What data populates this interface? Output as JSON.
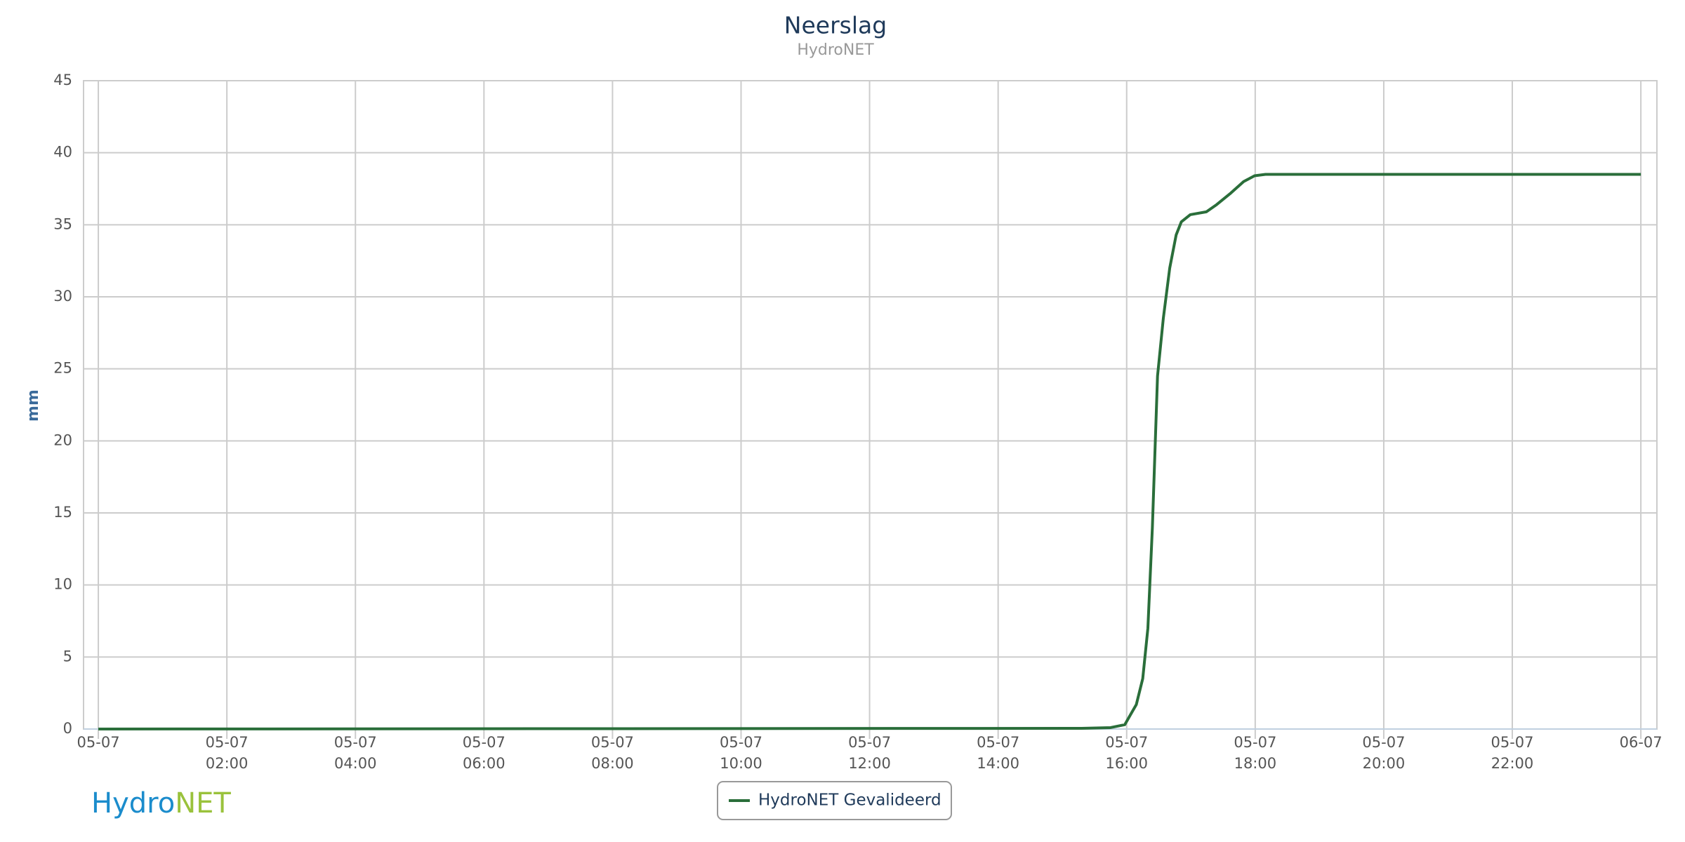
{
  "chart_data": {
    "type": "line",
    "title": "Neerslag",
    "subtitle": "HydroNET",
    "y_label": "mm",
    "x": [
      0,
      15.3,
      15.75,
      15.97,
      16.15,
      16.25,
      16.33,
      16.4,
      16.48,
      16.57,
      16.67,
      16.77,
      16.85,
      16.99,
      17.24,
      17.4,
      17.62,
      17.82,
      17.99,
      18.16,
      24
    ],
    "series": [
      {
        "name": "HydroNET Gevalideerd",
        "color": "#2a6e3a",
        "values": [
          0,
          0.05,
          0.1,
          0.3,
          1.7,
          3.5,
          7,
          14,
          24.5,
          28.5,
          32,
          34.3,
          35.2,
          35.7,
          35.9,
          36.4,
          37.2,
          38.0,
          38.4,
          38.5,
          38.5
        ]
      }
    ],
    "xlim": [
      -0.23,
      24.25
    ],
    "xticks": [
      {
        "value": 0,
        "label": [
          "05-07"
        ]
      },
      {
        "value": 2,
        "label": [
          "05-07",
          "02:00"
        ]
      },
      {
        "value": 4,
        "label": [
          "05-07",
          "04:00"
        ]
      },
      {
        "value": 6,
        "label": [
          "05-07",
          "06:00"
        ]
      },
      {
        "value": 8,
        "label": [
          "05-07",
          "08:00"
        ]
      },
      {
        "value": 10,
        "label": [
          "05-07",
          "10:00"
        ]
      },
      {
        "value": 12,
        "label": [
          "05-07",
          "12:00"
        ]
      },
      {
        "value": 14,
        "label": [
          "05-07",
          "14:00"
        ]
      },
      {
        "value": 16,
        "label": [
          "05-07",
          "16:00"
        ]
      },
      {
        "value": 18,
        "label": [
          "05-07",
          "18:00"
        ]
      },
      {
        "value": 20,
        "label": [
          "05-07",
          "20:00"
        ]
      },
      {
        "value": 22,
        "label": [
          "05-07",
          "22:00"
        ]
      },
      {
        "value": 24,
        "label": [
          "06-07"
        ]
      }
    ],
    "ylim": [
      0,
      45
    ],
    "yticks": [
      0,
      5,
      10,
      15,
      20,
      25,
      30,
      35,
      40,
      45
    ],
    "grid": true,
    "legend": "bottom",
    "logo": [
      "Hydro",
      "NET"
    ]
  }
}
